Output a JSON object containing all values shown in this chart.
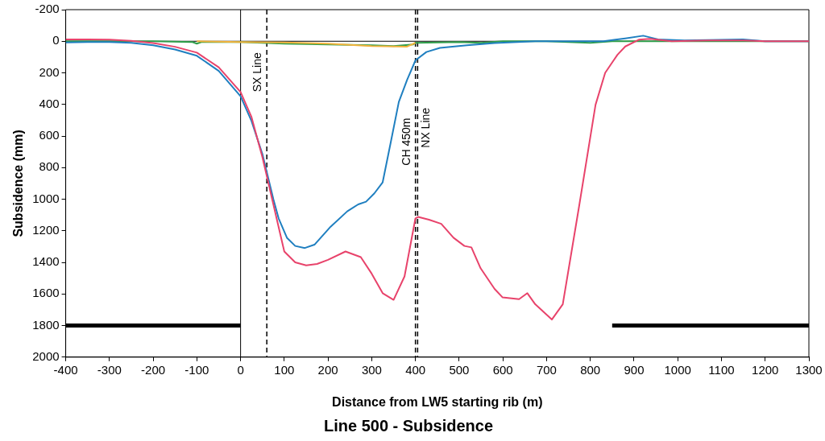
{
  "chart_data": {
    "type": "line",
    "title": "Line 500 - Subsidence",
    "xlabel": "Distance from LW5 starting rib (m)",
    "ylabel": "Subsidence (mm)",
    "xlim": [
      -400,
      1300
    ],
    "xticks": [
      -400,
      -300,
      -200,
      -100,
      0,
      100,
      200,
      300,
      400,
      500,
      600,
      700,
      800,
      900,
      1000,
      1100,
      1200,
      1300
    ],
    "ylim": [
      2000,
      -200
    ],
    "yticks": [
      -200,
      0,
      200,
      400,
      600,
      800,
      1000,
      1200,
      1400,
      1600,
      1800,
      2000
    ],
    "grid": false,
    "legend": false,
    "marker": "none",
    "line_style": "solid",
    "series": [
      {
        "color": "#e8436b",
        "x": [
          -400,
          -350,
          -300,
          -250,
          -200,
          -150,
          -100,
          -50,
          0,
          25,
          50,
          75,
          100,
          125,
          150,
          175,
          200,
          240,
          275,
          300,
          325,
          350,
          375,
          400,
          406,
          431,
          459,
          487,
          512,
          528,
          549,
          581,
          599,
          637,
          656,
          674,
          712,
          737,
          774,
          812,
          834,
          862,
          880,
          911,
          937,
          986,
          1070,
          1150,
          1200,
          1300
        ],
        "values": [
          -12,
          -12,
          -10,
          -2,
          12,
          35,
          72,
          165,
          322,
          480,
          735,
          1033,
          1331,
          1400,
          1419,
          1410,
          1384,
          1331,
          1367,
          1472,
          1595,
          1637,
          1489,
          1121,
          1112,
          1130,
          1156,
          1244,
          1296,
          1305,
          1437,
          1568,
          1621,
          1633,
          1595,
          1665,
          1762,
          1665,
          1051,
          402,
          200,
          86,
          33,
          -10,
          -15,
          0,
          -5,
          -5,
          0,
          0
        ]
      },
      {
        "color": "#1f7fc0",
        "x": [
          -400,
          -350,
          -300,
          -250,
          -200,
          -150,
          -100,
          -50,
          0,
          25,
          50,
          75,
          87,
          106,
          125,
          147,
          169,
          206,
          244,
          269,
          287,
          306,
          325,
          343,
          362,
          381,
          400,
          425,
          456,
          518,
          581,
          674,
          830,
          880,
          921,
          955,
          1016,
          1149,
          1200,
          1300
        ],
        "values": [
          8,
          5,
          5,
          10,
          25,
          52,
          92,
          188,
          348,
          505,
          715,
          1000,
          1121,
          1244,
          1296,
          1309,
          1288,
          1174,
          1077,
          1033,
          1016,
          963,
          893,
          647,
          384,
          244,
          121,
          68,
          42,
          25,
          12,
          0,
          0,
          -18,
          -35,
          -12,
          -5,
          -12,
          0,
          0
        ]
      },
      {
        "color": "#f2b33d",
        "x": [
          -100,
          0,
          100,
          200,
          300,
          380,
          400
        ],
        "values": [
          0,
          5,
          8,
          15,
          30,
          35,
          10
        ]
      },
      {
        "color": "#2e9e4a",
        "x": [
          -400,
          -300,
          -200,
          -110,
          -100,
          -90,
          0,
          100,
          200,
          300,
          350,
          395,
          400,
          450,
          500,
          550,
          600,
          700,
          800,
          850,
          900,
          1000,
          1300
        ],
        "values": [
          0,
          0,
          0,
          5,
          15,
          5,
          5,
          15,
          20,
          25,
          30,
          20,
          10,
          8,
          5,
          10,
          0,
          0,
          10,
          0,
          0,
          0,
          0
        ]
      },
      {
        "color": "#000000",
        "x": [
          -400,
          0
        ],
        "values": [
          1800,
          1800
        ]
      },
      {
        "color": "#000000",
        "x": [
          850,
          1300
        ],
        "values": [
          1800,
          1800
        ]
      }
    ],
    "ref_lines": [
      {
        "axis": "x",
        "value": 0,
        "label": null,
        "color": "#000000",
        "line_style": "solid"
      },
      {
        "axis": "x",
        "value": 60,
        "label": "SX Line",
        "color": "#000000",
        "line_style": "dashed"
      },
      {
        "axis": "x",
        "value": 400,
        "label": "CH 450m",
        "color": "#000000",
        "line_style": "dashed"
      },
      {
        "axis": "x",
        "value": 405,
        "label": "NX Line",
        "color": "#000000",
        "line_style": "dashed"
      },
      {
        "axis": "y",
        "value": 0,
        "label": null,
        "color": "#000000",
        "line_style": "solid"
      }
    ]
  }
}
